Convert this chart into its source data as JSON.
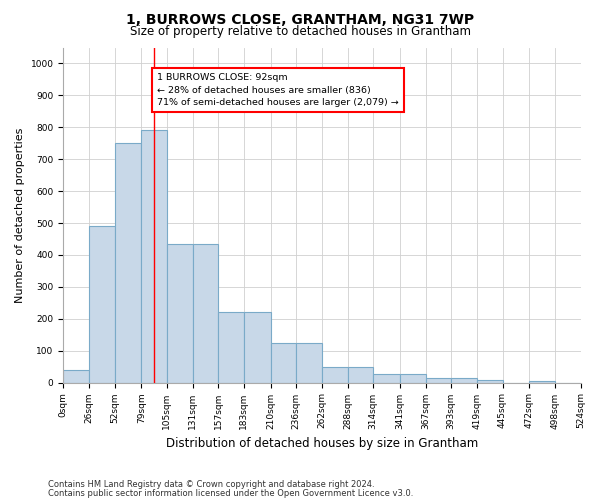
{
  "title": "1, BURROWS CLOSE, GRANTHAM, NG31 7WP",
  "subtitle": "Size of property relative to detached houses in Grantham",
  "xlabel": "Distribution of detached houses by size in Grantham",
  "ylabel": "Number of detached properties",
  "bar_color": "#c8d8e8",
  "bar_edge_color": "#7aaac8",
  "bins_left": [
    0,
    26,
    52,
    79,
    105,
    131,
    157,
    183,
    210,
    236,
    262,
    288,
    314,
    341,
    367,
    393,
    419,
    445,
    472,
    498
  ],
  "bins_right": [
    26,
    52,
    79,
    105,
    131,
    157,
    183,
    210,
    236,
    262,
    288,
    314,
    341,
    367,
    393,
    419,
    445,
    472,
    498,
    524
  ],
  "bin_labels": [
    "0sqm",
    "26sqm",
    "52sqm",
    "79sqm",
    "105sqm",
    "131sqm",
    "157sqm",
    "183sqm",
    "210sqm",
    "236sqm",
    "262sqm",
    "288sqm",
    "314sqm",
    "341sqm",
    "367sqm",
    "393sqm",
    "419sqm",
    "445sqm",
    "472sqm",
    "498sqm",
    "524sqm"
  ],
  "counts": [
    40,
    490,
    750,
    790,
    435,
    435,
    220,
    220,
    125,
    125,
    50,
    50,
    27,
    27,
    13,
    13,
    7,
    0,
    5,
    0
  ],
  "ylim": [
    0,
    1050
  ],
  "yticks": [
    0,
    100,
    200,
    300,
    400,
    500,
    600,
    700,
    800,
    900,
    1000
  ],
  "property_line_x": 92,
  "annotation_text": "1 BURROWS CLOSE: 92sqm\n← 28% of detached houses are smaller (836)\n71% of semi-detached houses are larger (2,079) →",
  "footer1": "Contains HM Land Registry data © Crown copyright and database right 2024.",
  "footer2": "Contains public sector information licensed under the Open Government Licence v3.0.",
  "bg_color": "#ffffff",
  "grid_color": "#d0d0d0",
  "title_fontsize": 10,
  "subtitle_fontsize": 8.5,
  "ylabel_fontsize": 8,
  "xlabel_fontsize": 8.5,
  "tick_fontsize": 6.5,
  "footer_fontsize": 6
}
